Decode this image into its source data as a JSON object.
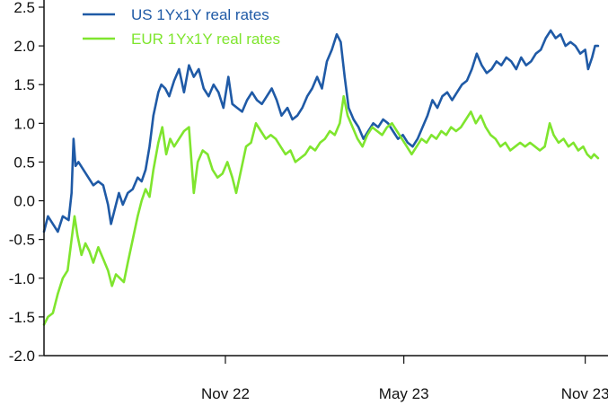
{
  "chart_data": {
    "type": "line",
    "title": "",
    "xlabel": "",
    "ylabel": "",
    "ylim": [
      -2.0,
      2.5
    ],
    "y_ticks": [
      "-2.0",
      "-1.5",
      "-1.0",
      "-0.5",
      "0.0",
      "0.5",
      "1.0",
      "1.5",
      "2.0",
      "2.5"
    ],
    "x_ticks": [
      {
        "label": "Nov 22",
        "x": "2022-11-01"
      },
      {
        "label": "May 23",
        "x": "2023-05-01"
      },
      {
        "label": "Nov 23",
        "x": "2023-11-01"
      }
    ],
    "x_range": [
      "2022-05-01",
      "2023-11-15"
    ],
    "grid": false,
    "legend": "top-left",
    "series": [
      {
        "name": "US 1Yx1Y real rates",
        "color": "#1f5aa6",
        "points": [
          [
            "2022-05-01",
            -0.4
          ],
          [
            "2022-05-05",
            -0.2
          ],
          [
            "2022-05-10",
            -0.3
          ],
          [
            "2022-05-15",
            -0.4
          ],
          [
            "2022-05-20",
            -0.2
          ],
          [
            "2022-05-26",
            -0.25
          ],
          [
            "2022-05-29",
            0.1
          ],
          [
            "2022-05-31",
            0.8
          ],
          [
            "2022-06-02",
            0.45
          ],
          [
            "2022-06-05",
            0.5
          ],
          [
            "2022-06-10",
            0.4
          ],
          [
            "2022-06-15",
            0.3
          ],
          [
            "2022-06-20",
            0.2
          ],
          [
            "2022-06-25",
            0.25
          ],
          [
            "2022-06-30",
            0.2
          ],
          [
            "2022-07-05",
            -0.05
          ],
          [
            "2022-07-08",
            -0.3
          ],
          [
            "2022-07-12",
            -0.1
          ],
          [
            "2022-07-16",
            0.1
          ],
          [
            "2022-07-20",
            -0.05
          ],
          [
            "2022-07-25",
            0.1
          ],
          [
            "2022-07-30",
            0.15
          ],
          [
            "2022-08-04",
            0.3
          ],
          [
            "2022-08-08",
            0.25
          ],
          [
            "2022-08-12",
            0.4
          ],
          [
            "2022-08-16",
            0.7
          ],
          [
            "2022-08-20",
            1.1
          ],
          [
            "2022-08-25",
            1.4
          ],
          [
            "2022-08-28",
            1.5
          ],
          [
            "2022-09-01",
            1.45
          ],
          [
            "2022-09-05",
            1.35
          ],
          [
            "2022-09-10",
            1.55
          ],
          [
            "2022-09-15",
            1.7
          ],
          [
            "2022-09-20",
            1.4
          ],
          [
            "2022-09-25",
            1.75
          ],
          [
            "2022-09-30",
            1.6
          ],
          [
            "2022-10-05",
            1.7
          ],
          [
            "2022-10-10",
            1.45
          ],
          [
            "2022-10-15",
            1.35
          ],
          [
            "2022-10-20",
            1.5
          ],
          [
            "2022-10-25",
            1.4
          ],
          [
            "2022-10-30",
            1.2
          ],
          [
            "2022-11-04",
            1.6
          ],
          [
            "2022-11-08",
            1.25
          ],
          [
            "2022-11-13",
            1.2
          ],
          [
            "2022-11-18",
            1.15
          ],
          [
            "2022-11-23",
            1.3
          ],
          [
            "2022-11-28",
            1.4
          ],
          [
            "2022-12-03",
            1.3
          ],
          [
            "2022-12-08",
            1.25
          ],
          [
            "2022-12-13",
            1.35
          ],
          [
            "2022-12-18",
            1.45
          ],
          [
            "2022-12-23",
            1.3
          ],
          [
            "2022-12-28",
            1.1
          ],
          [
            "2023-01-03",
            1.2
          ],
          [
            "2023-01-08",
            1.05
          ],
          [
            "2023-01-13",
            1.1
          ],
          [
            "2023-01-18",
            1.2
          ],
          [
            "2023-01-23",
            1.35
          ],
          [
            "2023-01-28",
            1.45
          ],
          [
            "2023-02-02",
            1.6
          ],
          [
            "2023-02-07",
            1.45
          ],
          [
            "2023-02-12",
            1.8
          ],
          [
            "2023-02-17",
            1.95
          ],
          [
            "2023-02-22",
            2.15
          ],
          [
            "2023-02-26",
            2.05
          ],
          [
            "2023-03-02",
            1.6
          ],
          [
            "2023-03-06",
            1.2
          ],
          [
            "2023-03-11",
            1.05
          ],
          [
            "2023-03-16",
            0.95
          ],
          [
            "2023-03-21",
            0.8
          ],
          [
            "2023-03-26",
            0.9
          ],
          [
            "2023-03-31",
            1.0
          ],
          [
            "2023-04-05",
            0.95
          ],
          [
            "2023-04-10",
            1.05
          ],
          [
            "2023-04-15",
            1.0
          ],
          [
            "2023-04-20",
            0.9
          ],
          [
            "2023-04-25",
            0.8
          ],
          [
            "2023-04-30",
            0.85
          ],
          [
            "2023-05-05",
            0.75
          ],
          [
            "2023-05-10",
            0.7
          ],
          [
            "2023-05-15",
            0.8
          ],
          [
            "2023-05-20",
            0.95
          ],
          [
            "2023-05-25",
            1.1
          ],
          [
            "2023-05-30",
            1.3
          ],
          [
            "2023-06-04",
            1.2
          ],
          [
            "2023-06-09",
            1.35
          ],
          [
            "2023-06-14",
            1.4
          ],
          [
            "2023-06-19",
            1.3
          ],
          [
            "2023-06-24",
            1.4
          ],
          [
            "2023-06-29",
            1.5
          ],
          [
            "2023-07-04",
            1.55
          ],
          [
            "2023-07-09",
            1.7
          ],
          [
            "2023-07-14",
            1.9
          ],
          [
            "2023-07-19",
            1.75
          ],
          [
            "2023-07-24",
            1.65
          ],
          [
            "2023-07-29",
            1.7
          ],
          [
            "2023-08-03",
            1.8
          ],
          [
            "2023-08-08",
            1.75
          ],
          [
            "2023-08-13",
            1.85
          ],
          [
            "2023-08-18",
            1.8
          ],
          [
            "2023-08-23",
            1.7
          ],
          [
            "2023-08-28",
            1.85
          ],
          [
            "2023-09-02",
            1.75
          ],
          [
            "2023-09-07",
            1.8
          ],
          [
            "2023-09-12",
            1.9
          ],
          [
            "2023-09-17",
            1.95
          ],
          [
            "2023-09-22",
            2.1
          ],
          [
            "2023-09-27",
            2.2
          ],
          [
            "2023-10-02",
            2.1
          ],
          [
            "2023-10-07",
            2.15
          ],
          [
            "2023-10-12",
            2.0
          ],
          [
            "2023-10-17",
            2.05
          ],
          [
            "2023-10-22",
            2.0
          ],
          [
            "2023-10-27",
            1.9
          ],
          [
            "2023-11-01",
            1.95
          ],
          [
            "2023-11-04",
            1.7
          ],
          [
            "2023-11-08",
            1.85
          ],
          [
            "2023-11-11",
            2.0
          ],
          [
            "2023-11-14",
            2.0
          ]
        ]
      },
      {
        "name": "EUR 1Yx1Y real rates",
        "color": "#7fe52e",
        "points": [
          [
            "2022-05-01",
            -1.6
          ],
          [
            "2022-05-05",
            -1.5
          ],
          [
            "2022-05-10",
            -1.45
          ],
          [
            "2022-05-15",
            -1.2
          ],
          [
            "2022-05-20",
            -1.0
          ],
          [
            "2022-05-25",
            -0.9
          ],
          [
            "2022-05-29",
            -0.5
          ],
          [
            "2022-06-01",
            -0.2
          ],
          [
            "2022-06-04",
            -0.45
          ],
          [
            "2022-06-08",
            -0.7
          ],
          [
            "2022-06-12",
            -0.55
          ],
          [
            "2022-06-16",
            -0.65
          ],
          [
            "2022-06-20",
            -0.8
          ],
          [
            "2022-06-25",
            -0.6
          ],
          [
            "2022-06-30",
            -0.75
          ],
          [
            "2022-07-05",
            -0.9
          ],
          [
            "2022-07-09",
            -1.1
          ],
          [
            "2022-07-13",
            -0.95
          ],
          [
            "2022-07-17",
            -1.0
          ],
          [
            "2022-07-21",
            -1.05
          ],
          [
            "2022-07-25",
            -0.8
          ],
          [
            "2022-07-30",
            -0.5
          ],
          [
            "2022-08-04",
            -0.2
          ],
          [
            "2022-08-08",
            0.0
          ],
          [
            "2022-08-12",
            0.15
          ],
          [
            "2022-08-16",
            0.05
          ],
          [
            "2022-08-20",
            0.4
          ],
          [
            "2022-08-25",
            0.75
          ],
          [
            "2022-08-29",
            0.95
          ],
          [
            "2022-09-02",
            0.6
          ],
          [
            "2022-09-06",
            0.8
          ],
          [
            "2022-09-10",
            0.7
          ],
          [
            "2022-09-15",
            0.8
          ],
          [
            "2022-09-20",
            0.9
          ],
          [
            "2022-09-25",
            0.95
          ],
          [
            "2022-09-30",
            0.1
          ],
          [
            "2022-10-04",
            0.5
          ],
          [
            "2022-10-09",
            0.65
          ],
          [
            "2022-10-14",
            0.6
          ],
          [
            "2022-10-19",
            0.4
          ],
          [
            "2022-10-24",
            0.3
          ],
          [
            "2022-10-29",
            0.35
          ],
          [
            "2022-11-03",
            0.5
          ],
          [
            "2022-11-08",
            0.3
          ],
          [
            "2022-11-12",
            0.1
          ],
          [
            "2022-11-17",
            0.4
          ],
          [
            "2022-11-22",
            0.7
          ],
          [
            "2022-11-27",
            0.75
          ],
          [
            "2022-12-02",
            1.0
          ],
          [
            "2022-12-07",
            0.9
          ],
          [
            "2022-12-12",
            0.8
          ],
          [
            "2022-12-17",
            0.85
          ],
          [
            "2022-12-22",
            0.8
          ],
          [
            "2022-12-27",
            0.7
          ],
          [
            "2023-01-01",
            0.6
          ],
          [
            "2023-01-06",
            0.65
          ],
          [
            "2023-01-11",
            0.5
          ],
          [
            "2023-01-16",
            0.55
          ],
          [
            "2023-01-21",
            0.6
          ],
          [
            "2023-01-26",
            0.7
          ],
          [
            "2023-01-31",
            0.65
          ],
          [
            "2023-02-05",
            0.75
          ],
          [
            "2023-02-10",
            0.8
          ],
          [
            "2023-02-15",
            0.9
          ],
          [
            "2023-02-20",
            0.85
          ],
          [
            "2023-02-25",
            1.0
          ],
          [
            "2023-03-01",
            1.35
          ],
          [
            "2023-03-05",
            1.1
          ],
          [
            "2023-03-10",
            0.95
          ],
          [
            "2023-03-15",
            0.8
          ],
          [
            "2023-03-20",
            0.7
          ],
          [
            "2023-03-25",
            0.85
          ],
          [
            "2023-03-30",
            0.95
          ],
          [
            "2023-04-04",
            0.9
          ],
          [
            "2023-04-09",
            0.85
          ],
          [
            "2023-04-14",
            0.95
          ],
          [
            "2023-04-19",
            1.0
          ],
          [
            "2023-04-24",
            0.9
          ],
          [
            "2023-04-29",
            0.8
          ],
          [
            "2023-05-04",
            0.7
          ],
          [
            "2023-05-09",
            0.6
          ],
          [
            "2023-05-14",
            0.7
          ],
          [
            "2023-05-19",
            0.8
          ],
          [
            "2023-05-24",
            0.75
          ],
          [
            "2023-05-29",
            0.85
          ],
          [
            "2023-06-03",
            0.8
          ],
          [
            "2023-06-08",
            0.9
          ],
          [
            "2023-06-13",
            0.85
          ],
          [
            "2023-06-18",
            0.95
          ],
          [
            "2023-06-23",
            0.9
          ],
          [
            "2023-06-28",
            0.95
          ],
          [
            "2023-07-03",
            1.05
          ],
          [
            "2023-07-08",
            1.15
          ],
          [
            "2023-07-13",
            1.0
          ],
          [
            "2023-07-18",
            1.1
          ],
          [
            "2023-07-23",
            0.95
          ],
          [
            "2023-07-28",
            0.85
          ],
          [
            "2023-08-02",
            0.8
          ],
          [
            "2023-08-07",
            0.7
          ],
          [
            "2023-08-12",
            0.75
          ],
          [
            "2023-08-17",
            0.65
          ],
          [
            "2023-08-22",
            0.7
          ],
          [
            "2023-08-27",
            0.75
          ],
          [
            "2023-09-01",
            0.7
          ],
          [
            "2023-09-06",
            0.75
          ],
          [
            "2023-09-11",
            0.7
          ],
          [
            "2023-09-16",
            0.65
          ],
          [
            "2023-09-21",
            0.7
          ],
          [
            "2023-09-26",
            1.0
          ],
          [
            "2023-09-30",
            0.85
          ],
          [
            "2023-10-05",
            0.75
          ],
          [
            "2023-10-10",
            0.8
          ],
          [
            "2023-10-15",
            0.7
          ],
          [
            "2023-10-20",
            0.75
          ],
          [
            "2023-10-25",
            0.65
          ],
          [
            "2023-10-30",
            0.7
          ],
          [
            "2023-11-03",
            0.6
          ],
          [
            "2023-11-07",
            0.55
          ],
          [
            "2023-11-10",
            0.6
          ],
          [
            "2023-11-14",
            0.55
          ]
        ]
      }
    ]
  }
}
